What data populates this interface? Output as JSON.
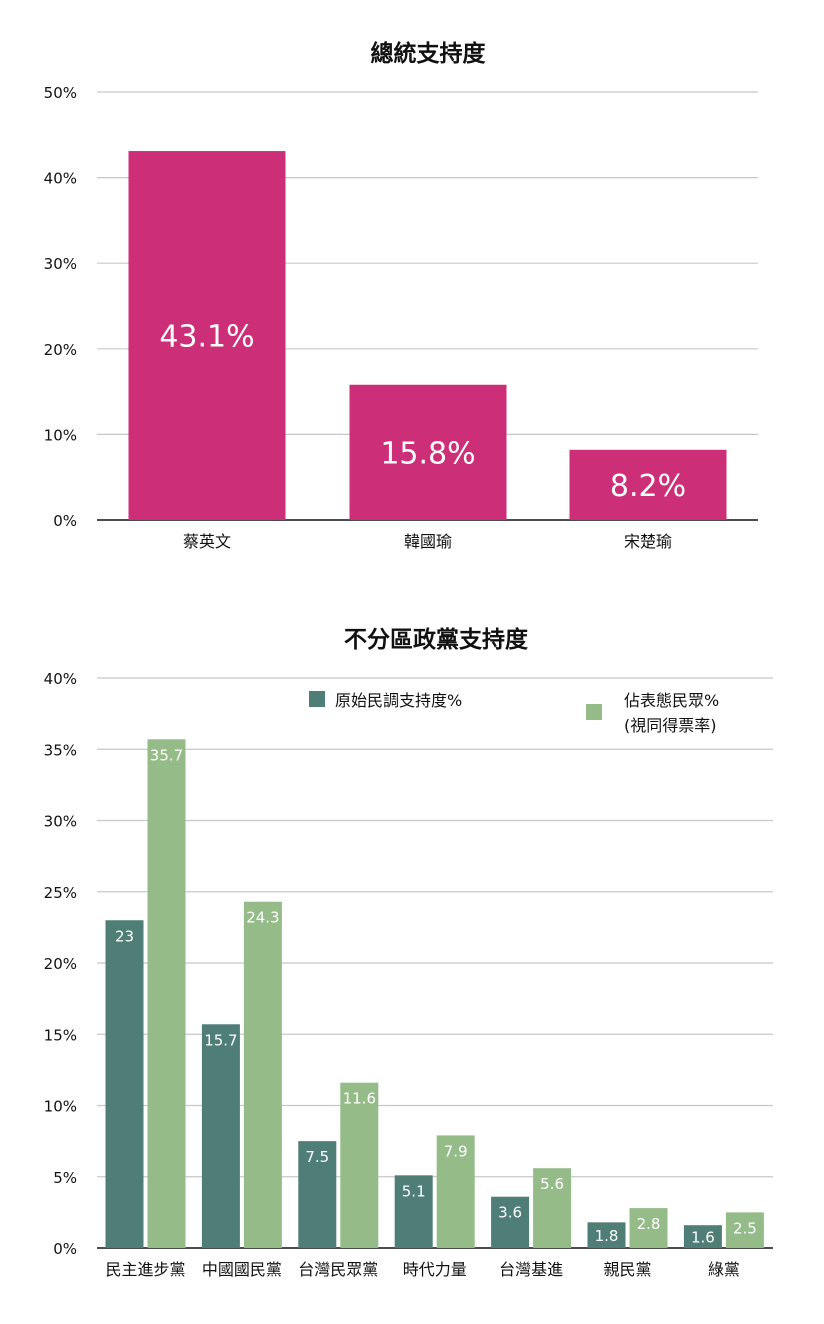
{
  "chart_data": [
    {
      "type": "bar",
      "title": "總統支持度",
      "categories": [
        "蔡英文",
        "韓國瑜",
        "宋楚瑜"
      ],
      "values": [
        43.1,
        15.8,
        8.2
      ],
      "value_labels": [
        "43.1%",
        "15.8%",
        "8.2%"
      ],
      "ylim": [
        0,
        50
      ],
      "yticks": [
        0,
        10,
        20,
        30,
        40,
        50
      ],
      "ytick_labels": [
        "0%",
        "10%",
        "20%",
        "30%",
        "40%",
        "50%"
      ],
      "grid": true,
      "color": "#cc2e78"
    },
    {
      "type": "bar",
      "title": "不分區政黨支持度",
      "categories": [
        "民主進步黨",
        "中國國民黨",
        "台灣民眾黨",
        "時代力量",
        "台灣基進",
        "親民黨",
        "綠黨"
      ],
      "series": [
        {
          "name": "原始民調支持度%",
          "values": [
            23,
            15.7,
            7.5,
            5.1,
            3.6,
            1.8,
            1.6
          ],
          "labels": [
            "23",
            "15.7",
            "7.5",
            "5.1",
            "3.6",
            "1.8",
            "1.6"
          ],
          "color": "#4e7e75"
        },
        {
          "name": "佔表態民眾%",
          "name_line2": "(視同得票率)",
          "values": [
            35.7,
            24.3,
            11.6,
            7.9,
            5.6,
            2.8,
            2.5
          ],
          "labels": [
            "35.7",
            "24.3",
            "11.6",
            "7.9",
            "5.6",
            "2.8",
            "2.5"
          ],
          "color": "#94bb88"
        }
      ],
      "ylim": [
        0,
        40
      ],
      "yticks": [
        0,
        5,
        10,
        15,
        20,
        25,
        30,
        35,
        40
      ],
      "ytick_labels": [
        "0%",
        "5%",
        "10%",
        "15%",
        "20%",
        "25%",
        "30%",
        "35%",
        "40%"
      ],
      "grid": true,
      "legend": "top"
    }
  ]
}
